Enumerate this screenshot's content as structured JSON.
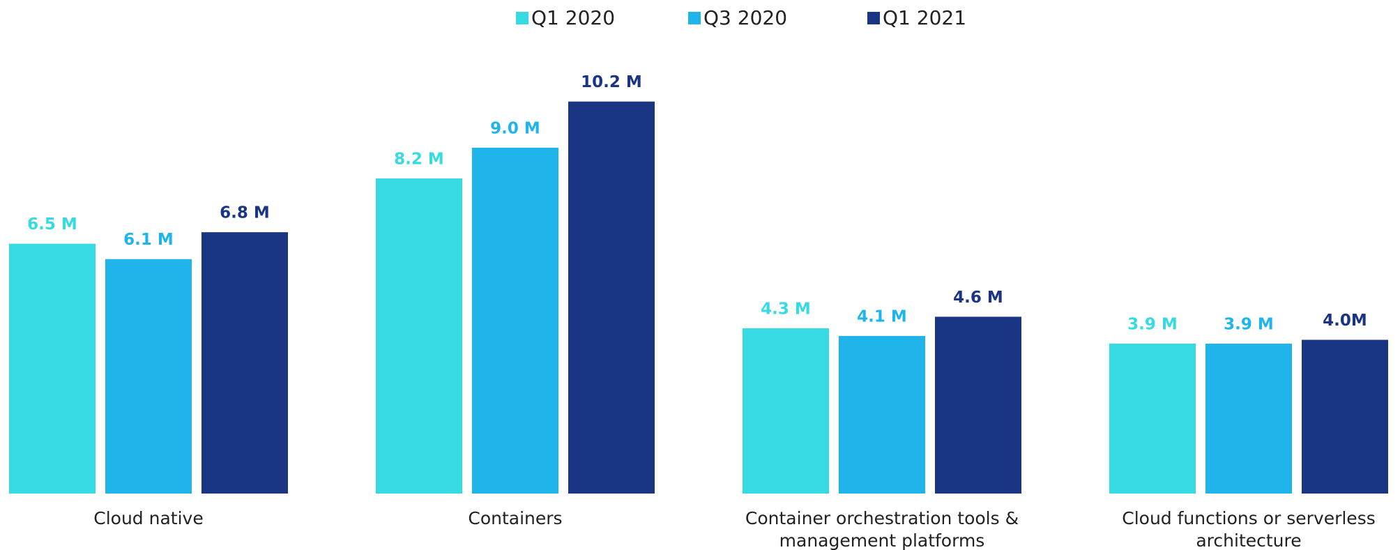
{
  "chart_data": {
    "type": "bar",
    "categories": [
      "Cloud native",
      "Containers",
      "Container orchestration tools & management platforms",
      "Cloud functions or serverless architecture"
    ],
    "series": [
      {
        "name": "Q1 2020",
        "color": "#36dae3",
        "values": [
          6.5,
          8.2,
          4.3,
          3.9
        ],
        "value_labels": [
          "6.5 M",
          "8.2 M",
          "4.3 M",
          "3.9 M"
        ]
      },
      {
        "name": "Q3 2020",
        "color": "#1fb5ea",
        "values": [
          6.1,
          9.0,
          4.1,
          3.9
        ],
        "value_labels": [
          "6.1 M",
          "9.0 M",
          "4.1 M",
          "3.9 M"
        ]
      },
      {
        "name": "Q1 2021",
        "color": "#1b3585",
        "values": [
          6.8,
          10.2,
          4.6,
          4.0
        ],
        "value_labels": [
          "6.8 M",
          "10.2 M",
          "4.6 M",
          "4.0M"
        ]
      }
    ],
    "legend": "top"
  }
}
